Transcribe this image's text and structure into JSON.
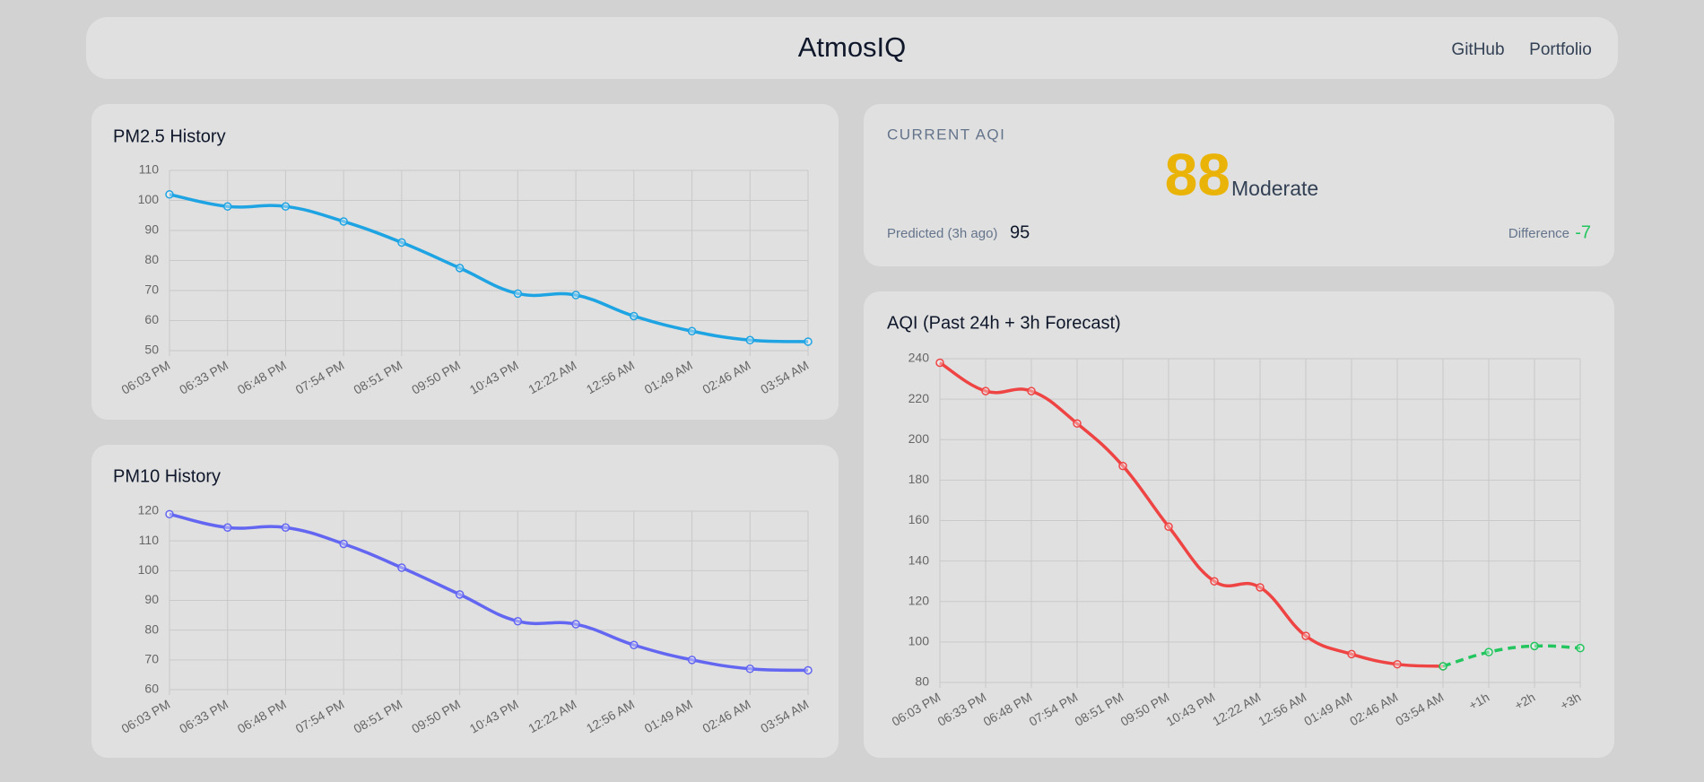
{
  "header": {
    "title": "AtmosIQ",
    "links": [
      "GitHub",
      "Portfolio"
    ]
  },
  "current": {
    "label": "CURRENT AQI",
    "value": 88,
    "category": "Moderate",
    "predicted_label": "Predicted (3h ago)",
    "predicted": 95,
    "difference_label": "Difference",
    "difference": -7
  },
  "chart_data": [
    {
      "type": "line",
      "title": "PM2.5 History",
      "categories": [
        "06:03 PM",
        "06:33 PM",
        "06:48 PM",
        "07:54 PM",
        "08:51 PM",
        "09:50 PM",
        "10:43 PM",
        "12:22 AM",
        "12:56 AM",
        "01:49 AM",
        "02:46 AM",
        "03:54 AM"
      ],
      "series": [
        {
          "color": "#1ea3e3",
          "values": [
            102,
            98,
            98,
            93,
            86,
            77.5,
            69,
            68.5,
            61.5,
            56.5,
            53.5,
            53
          ]
        }
      ],
      "ylim": [
        50,
        110
      ],
      "yticks": [
        50,
        60,
        70,
        80,
        90,
        100,
        110
      ],
      "grid": true
    },
    {
      "type": "line",
      "title": "PM10 History",
      "categories": [
        "06:03 PM",
        "06:33 PM",
        "06:48 PM",
        "07:54 PM",
        "08:51 PM",
        "09:50 PM",
        "10:43 PM",
        "12:22 AM",
        "12:56 AM",
        "01:49 AM",
        "02:46 AM",
        "03:54 AM"
      ],
      "series": [
        {
          "color": "#6366f1",
          "values": [
            119,
            114.5,
            114.5,
            109,
            101,
            92,
            83,
            82,
            75,
            70,
            67,
            66.5
          ]
        }
      ],
      "ylim": [
        60,
        120
      ],
      "yticks": [
        60,
        70,
        80,
        90,
        100,
        110,
        120
      ],
      "grid": true
    },
    {
      "type": "line",
      "title": "AQI (Past 24h + 3h Forecast)",
      "categories": [
        "06:03 PM",
        "06:33 PM",
        "06:48 PM",
        "07:54 PM",
        "08:51 PM",
        "09:50 PM",
        "10:43 PM",
        "12:22 AM",
        "12:56 AM",
        "01:49 AM",
        "02:46 AM",
        "03:54 AM",
        "+1h",
        "+2h",
        "+3h"
      ],
      "series": [
        {
          "color": "#ef4444",
          "dashed": false,
          "values": [
            238,
            224,
            224,
            208,
            187,
            157,
            130,
            127,
            103,
            94,
            89,
            88,
            null,
            null,
            null
          ]
        },
        {
          "color": "#22c55e",
          "dashed": true,
          "values": [
            null,
            null,
            null,
            null,
            null,
            null,
            null,
            null,
            null,
            null,
            null,
            88,
            95,
            98,
            97
          ]
        }
      ],
      "ylim": [
        80,
        240
      ],
      "yticks": [
        80,
        100,
        120,
        140,
        160,
        180,
        200,
        220,
        240
      ],
      "grid": true
    }
  ]
}
